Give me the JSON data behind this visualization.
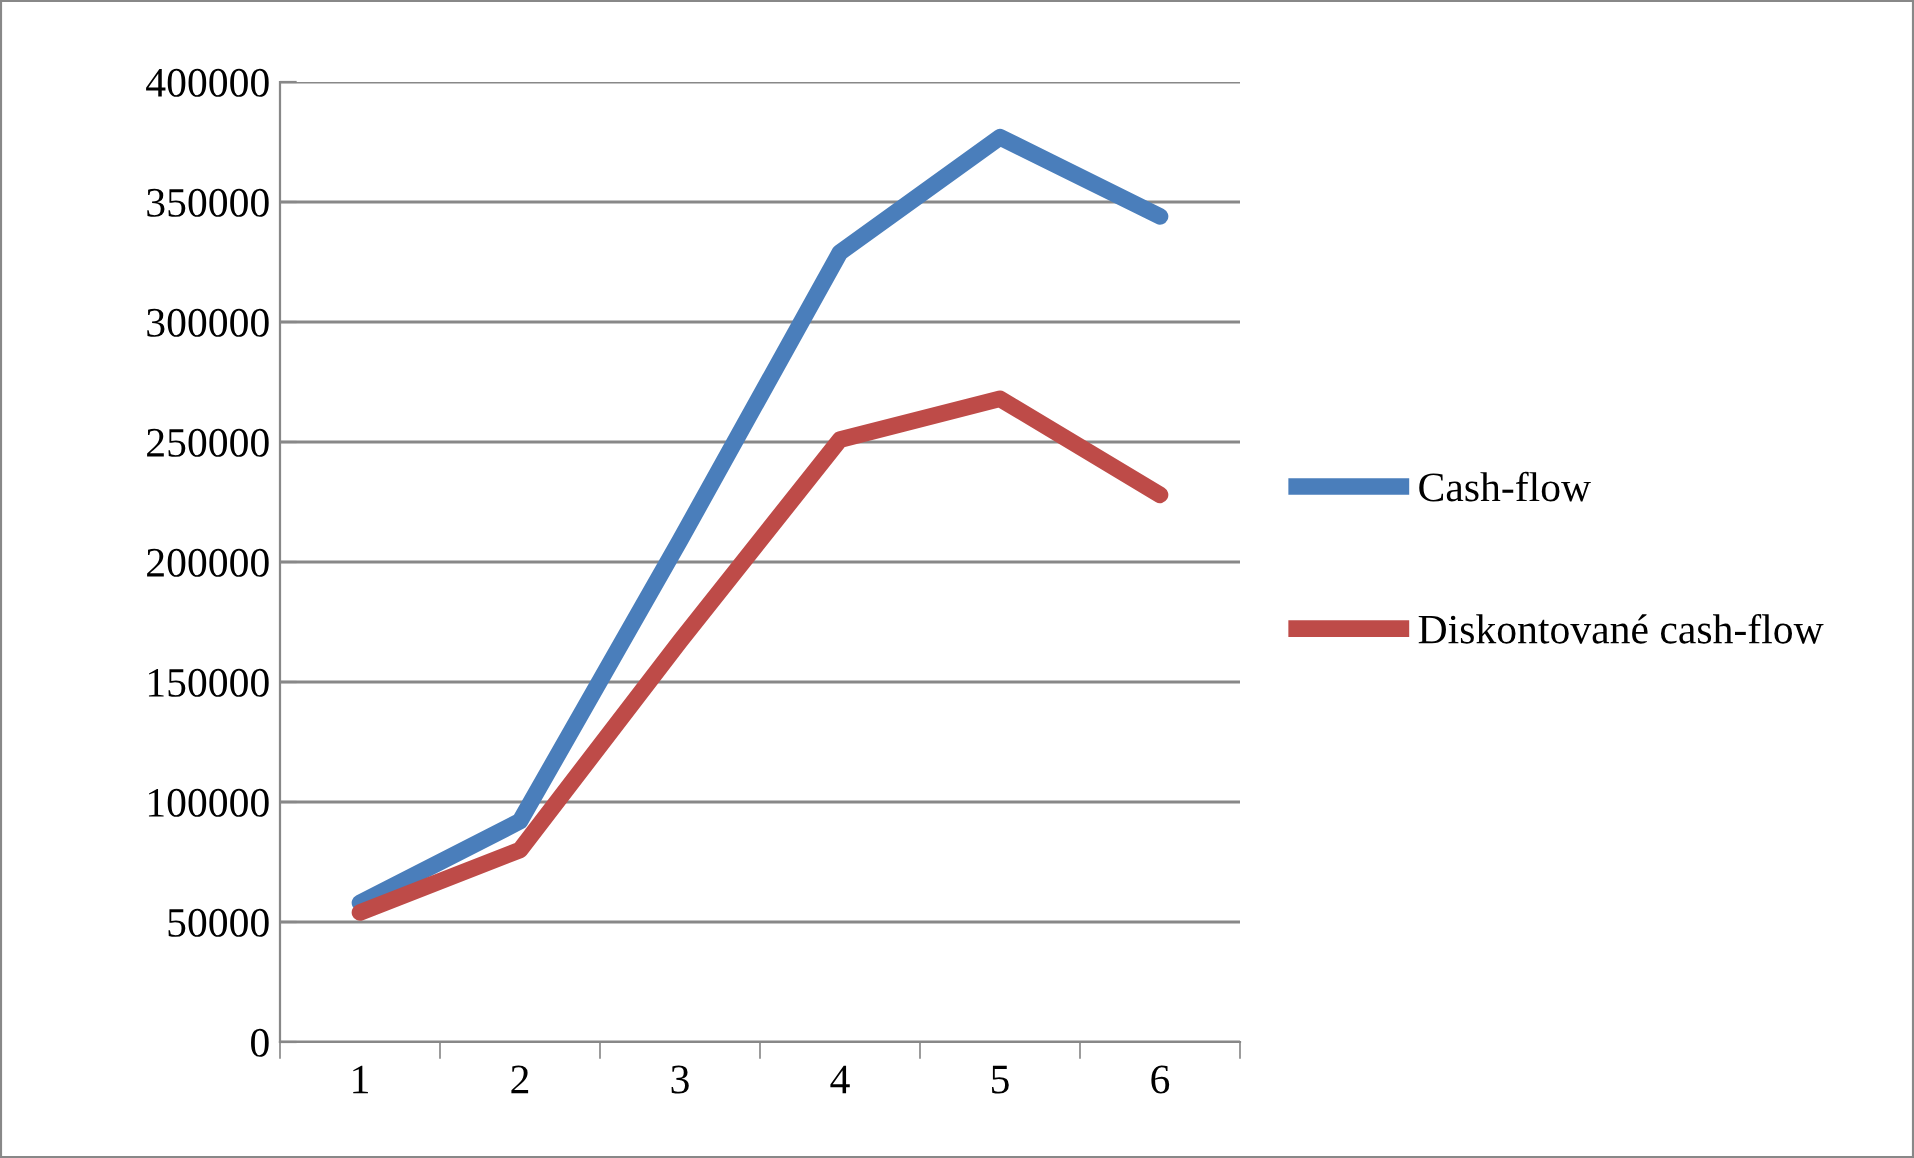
{
  "chart_data": {
    "type": "line",
    "categories": [
      "1",
      "2",
      "3",
      "4",
      "5",
      "6"
    ],
    "series": [
      {
        "name": "Cash-flow",
        "color": "#4a7ebb",
        "values": [
          58000,
          92000,
          209000,
          329000,
          377000,
          344000
        ]
      },
      {
        "name": "Diskontované cash-flow",
        "color": "#be4b48",
        "values": [
          54000,
          80000,
          167000,
          251000,
          268000,
          228000
        ]
      }
    ],
    "ylim": [
      0,
      400000
    ],
    "yticks": [
      0,
      50000,
      100000,
      150000,
      200000,
      250000,
      300000,
      350000,
      400000
    ],
    "grid": "y",
    "legend": "right",
    "marker": "none",
    "line_style": "solid"
  }
}
